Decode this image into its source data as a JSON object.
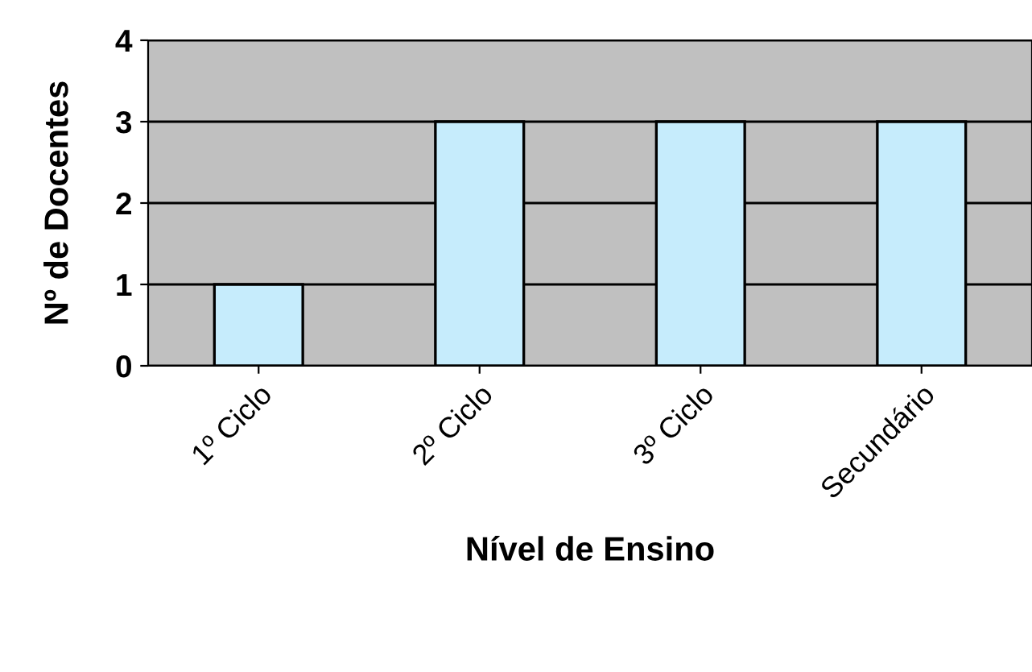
{
  "chart_data": {
    "type": "bar",
    "xlabel": "Nível de Ensino",
    "ylabel": "Nº de Docentes",
    "categories": [
      "1º Ciclo",
      "2º Ciclo",
      "3º Ciclo",
      "Secundário"
    ],
    "values": [
      1,
      3,
      3,
      3
    ],
    "color": "#c6ecfc",
    "ylim": [
      0,
      4
    ],
    "yticks": [
      0,
      1,
      2,
      3,
      4
    ],
    "grid": "y",
    "legend": false
  }
}
